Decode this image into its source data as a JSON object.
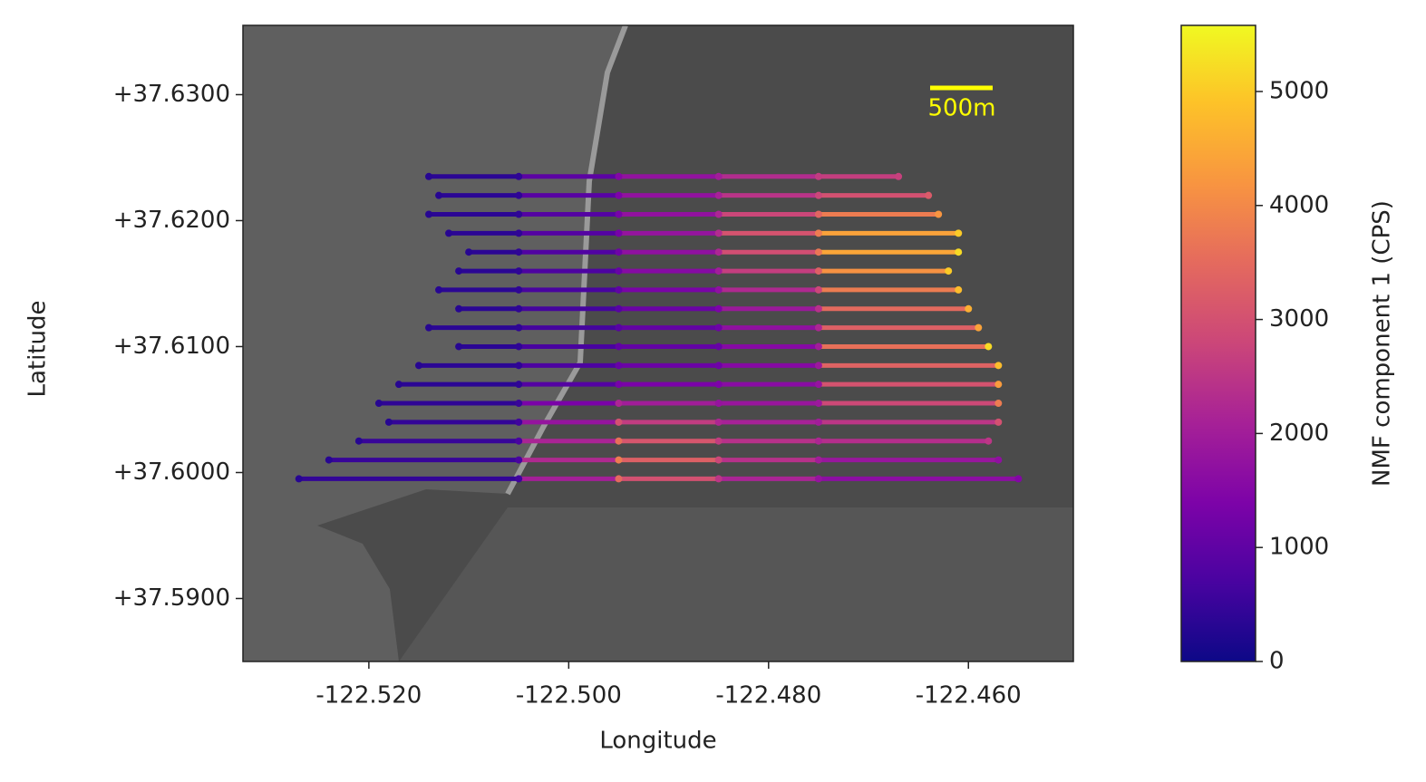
{
  "chart_data": {
    "type": "scatter",
    "xlabel": "Longitude",
    "ylabel": "Latitude",
    "xlim": [
      -122.5326,
      -122.4495
    ],
    "ylim": [
      37.585,
      37.6355
    ],
    "xticks": [
      {
        "value": -122.52,
        "label": "-122.520"
      },
      {
        "value": -122.5,
        "label": "-122.500"
      },
      {
        "value": -122.48,
        "label": "-122.480"
      },
      {
        "value": -122.46,
        "label": "-122.460"
      }
    ],
    "yticks": [
      {
        "value": 37.59,
        "label": "+37.5900"
      },
      {
        "value": 37.6,
        "label": "+37.6000"
      },
      {
        "value": 37.61,
        "label": "+37.6100"
      },
      {
        "value": 37.62,
        "label": "+37.6200"
      },
      {
        "value": 37.63,
        "label": "+37.6300"
      }
    ],
    "colormap": "plasma",
    "clim": [
      0,
      5580
    ],
    "cticks": [
      0,
      1000,
      2000,
      3000,
      4000,
      5000
    ],
    "clabel": "NMF component 1 (CPS)",
    "scale_bar_label": "500m",
    "scale_bar_color": "#ffff00",
    "tracks": [
      {
        "x": [
          -122.514,
          -122.505,
          -122.495,
          -122.485,
          -122.475,
          -122.467
        ],
        "y": [
          37.6235,
          37.6235,
          37.6235,
          37.6235,
          37.6235,
          37.6235
        ],
        "values": [
          300,
          400,
          1500,
          2000,
          2600,
          2700
        ]
      },
      {
        "x": [
          -122.513,
          -122.505,
          -122.495,
          -122.485,
          -122.475,
          -122.464
        ],
        "y": [
          37.622,
          37.622,
          37.622,
          37.622,
          37.622,
          37.622
        ],
        "values": [
          300,
          400,
          1400,
          2100,
          2800,
          3200
        ]
      },
      {
        "x": [
          -122.514,
          -122.505,
          -122.495,
          -122.485,
          -122.475,
          -122.463
        ],
        "y": [
          37.6205,
          37.6205,
          37.6205,
          37.6205,
          37.6205,
          37.6205
        ],
        "values": [
          300,
          400,
          1300,
          2200,
          3400,
          4200
        ]
      },
      {
        "x": [
          -122.512,
          -122.505,
          -122.495,
          -122.485,
          -122.475,
          -122.461
        ],
        "y": [
          37.619,
          37.619,
          37.619,
          37.619,
          37.619,
          37.619
        ],
        "values": [
          300,
          400,
          1300,
          2300,
          3800,
          5000
        ]
      },
      {
        "x": [
          -122.51,
          -122.505,
          -122.495,
          -122.485,
          -122.475,
          -122.461
        ],
        "y": [
          37.6175,
          37.6175,
          37.6175,
          37.6175,
          37.6175,
          37.6175
        ],
        "values": [
          300,
          400,
          1200,
          2200,
          3700,
          5200
        ]
      },
      {
        "x": [
          -122.511,
          -122.505,
          -122.495,
          -122.485,
          -122.475,
          -122.462
        ],
        "y": [
          37.616,
          37.616,
          37.616,
          37.616,
          37.616,
          37.616
        ],
        "values": [
          300,
          400,
          1100,
          2000,
          3300,
          5000
        ]
      },
      {
        "x": [
          -122.513,
          -122.505,
          -122.495,
          -122.485,
          -122.475,
          -122.461
        ],
        "y": [
          37.6145,
          37.6145,
          37.6145,
          37.6145,
          37.6145,
          37.6145
        ],
        "values": [
          300,
          400,
          1000,
          1700,
          2800,
          4800
        ]
      },
      {
        "x": [
          -122.511,
          -122.505,
          -122.495,
          -122.485,
          -122.475,
          -122.46
        ],
        "y": [
          37.613,
          37.613,
          37.613,
          37.613,
          37.613,
          37.613
        ],
        "values": [
          300,
          400,
          900,
          1400,
          2400,
          4600
        ]
      },
      {
        "x": [
          -122.514,
          -122.505,
          -122.495,
          -122.485,
          -122.475,
          -122.459
        ],
        "y": [
          37.6115,
          37.6115,
          37.6115,
          37.6115,
          37.6115,
          37.6115
        ],
        "values": [
          300,
          400,
          900,
          1200,
          2200,
          4400
        ]
      },
      {
        "x": [
          -122.511,
          -122.505,
          -122.495,
          -122.485,
          -122.475,
          -122.458
        ],
        "y": [
          37.61,
          37.61,
          37.61,
          37.61,
          37.61,
          37.61
        ],
        "values": [
          300,
          400,
          1000,
          1100,
          2000,
          5200
        ]
      },
      {
        "x": [
          -122.515,
          -122.505,
          -122.495,
          -122.485,
          -122.475,
          -122.457
        ],
        "y": [
          37.6085,
          37.6085,
          37.6085,
          37.6085,
          37.6085,
          37.6085
        ],
        "values": [
          300,
          400,
          1100,
          1200,
          1900,
          4800
        ]
      },
      {
        "x": [
          -122.517,
          -122.505,
          -122.495,
          -122.485,
          -122.475,
          -122.457
        ],
        "y": [
          37.607,
          37.607,
          37.607,
          37.607,
          37.607,
          37.607
        ],
        "values": [
          300,
          400,
          1300,
          1400,
          1800,
          4300
        ]
      },
      {
        "x": [
          -122.519,
          -122.505,
          -122.495,
          -122.485,
          -122.475,
          -122.457
        ],
        "y": [
          37.6055,
          37.6055,
          37.6055,
          37.6055,
          37.6055,
          37.6055
        ],
        "values": [
          300,
          500,
          2200,
          1800,
          1900,
          3800
        ]
      },
      {
        "x": [
          -122.518,
          -122.505,
          -122.495,
          -122.485,
          -122.475,
          -122.457
        ],
        "y": [
          37.604,
          37.604,
          37.604,
          37.604,
          37.604,
          37.604
        ],
        "values": [
          300,
          600,
          3000,
          2200,
          2000,
          3000
        ]
      },
      {
        "x": [
          -122.521,
          -122.505,
          -122.495,
          -122.485,
          -122.475,
          -122.458
        ],
        "y": [
          37.6025,
          37.6025,
          37.6025,
          37.6025,
          37.6025,
          37.6025
        ],
        "values": [
          300,
          700,
          3600,
          2600,
          2200,
          2500
        ]
      },
      {
        "x": [
          -122.524,
          -122.505,
          -122.495,
          -122.485,
          -122.475,
          -122.457
        ],
        "y": [
          37.601,
          37.601,
          37.601,
          37.601,
          37.601,
          37.601
        ],
        "values": [
          300,
          700,
          3800,
          2800,
          2000,
          1700
        ]
      },
      {
        "x": [
          -122.527,
          -122.505,
          -122.495,
          -122.485,
          -122.475,
          -122.455
        ],
        "y": [
          37.5995,
          37.5995,
          37.5995,
          37.5995,
          37.5995,
          37.5995
        ],
        "values": [
          300,
          600,
          3500,
          2500,
          1800,
          1500
        ]
      }
    ]
  }
}
